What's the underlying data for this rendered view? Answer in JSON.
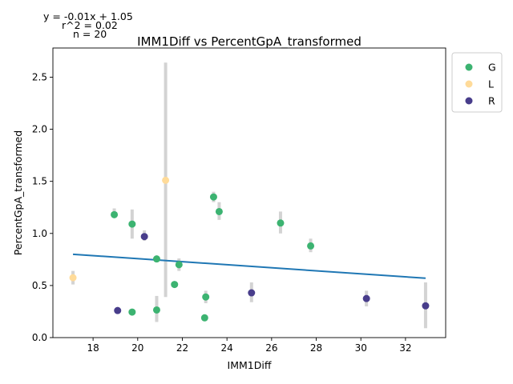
{
  "chart_data": {
    "type": "scatter",
    "title": "IMM1Diff vs PercentGpA_transformed",
    "xlabel": "IMM1Diff",
    "ylabel": "PercentGpA_transformed",
    "xlim": [
      16.2,
      33.8
    ],
    "ylim": [
      0.0,
      2.78
    ],
    "xticks": [
      18,
      20,
      22,
      24,
      26,
      28,
      30,
      32
    ],
    "yticks": [
      0.0,
      0.5,
      1.0,
      1.5,
      2.0,
      2.5
    ],
    "grid": false,
    "legend_placement": "outside-top-right",
    "annotation": [
      "y = -0.01x + 1.05",
      "r^2 = 0.02",
      "n = 20"
    ],
    "regression": {
      "x": [
        17.1,
        32.9
      ],
      "y": [
        0.8,
        0.57
      ],
      "color": "#1f77b4"
    },
    "series": [
      {
        "name": "G",
        "color": "#3cb371",
        "points": [
          {
            "x": 18.95,
            "y": 1.18,
            "err_lo": 1.16,
            "err_hi": 1.24
          },
          {
            "x": 19.75,
            "y": 1.09,
            "err_lo": 0.95,
            "err_hi": 1.23
          },
          {
            "x": 19.75,
            "y": 0.245,
            "err_lo": 0.22,
            "err_hi": 0.27
          },
          {
            "x": 20.85,
            "y": 0.755,
            "err_lo": 0.74,
            "err_hi": 0.77
          },
          {
            "x": 20.85,
            "y": 0.265,
            "err_lo": 0.15,
            "err_hi": 0.4
          },
          {
            "x": 21.65,
            "y": 0.51,
            "err_lo": 0.5,
            "err_hi": 0.52
          },
          {
            "x": 21.85,
            "y": 0.7,
            "err_lo": 0.64,
            "err_hi": 0.76
          },
          {
            "x": 23.0,
            "y": 0.19,
            "err_lo": 0.18,
            "err_hi": 0.2
          },
          {
            "x": 23.05,
            "y": 0.39,
            "err_lo": 0.33,
            "err_hi": 0.45
          },
          {
            "x": 23.4,
            "y": 1.35,
            "err_lo": 1.3,
            "err_hi": 1.4
          },
          {
            "x": 23.65,
            "y": 1.21,
            "err_lo": 1.13,
            "err_hi": 1.3
          },
          {
            "x": 26.4,
            "y": 1.1,
            "err_lo": 1.0,
            "err_hi": 1.21
          },
          {
            "x": 27.75,
            "y": 0.88,
            "err_lo": 0.82,
            "err_hi": 0.95
          }
        ]
      },
      {
        "name": "L",
        "color": "#ffdb99",
        "points": [
          {
            "x": 17.1,
            "y": 0.575,
            "err_lo": 0.51,
            "err_hi": 0.64
          },
          {
            "x": 21.25,
            "y": 1.51,
            "err_lo": 0.39,
            "err_hi": 2.64
          }
        ]
      },
      {
        "name": "R",
        "color": "#483d8b",
        "points": [
          {
            "x": 19.1,
            "y": 0.26,
            "err_lo": 0.25,
            "err_hi": 0.27
          },
          {
            "x": 20.3,
            "y": 0.97,
            "err_lo": 0.93,
            "err_hi": 1.03
          },
          {
            "x": 25.1,
            "y": 0.43,
            "err_lo": 0.34,
            "err_hi": 0.53
          },
          {
            "x": 30.25,
            "y": 0.375,
            "err_lo": 0.3,
            "err_hi": 0.45
          },
          {
            "x": 32.9,
            "y": 0.305,
            "err_lo": 0.09,
            "err_hi": 0.53
          }
        ]
      }
    ]
  }
}
